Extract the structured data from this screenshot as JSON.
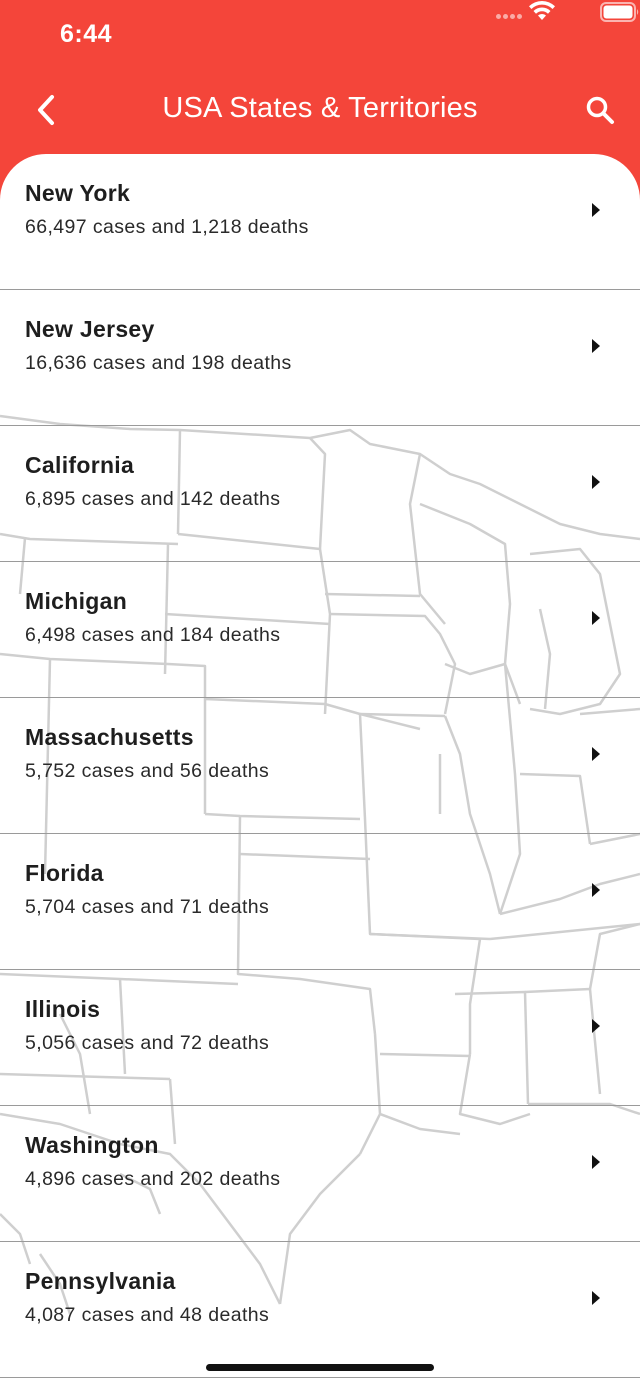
{
  "status_bar": {
    "time": "6:44"
  },
  "nav": {
    "title": "USA States & Territories",
    "back_icon": "chevron-left-icon",
    "search_icon": "search-icon"
  },
  "theme": {
    "header_color": "#f4453a",
    "list_background": "#ffffff"
  },
  "states": [
    {
      "name": "New York",
      "stats": "66,497 cases and 1,218 deaths"
    },
    {
      "name": "New Jersey",
      "stats": "16,636 cases and 198 deaths"
    },
    {
      "name": "California",
      "stats": "6,895 cases and 142 deaths"
    },
    {
      "name": "Michigan",
      "stats": "6,498 cases and 184 deaths"
    },
    {
      "name": "Massachusetts",
      "stats": "5,752 cases and 56 deaths"
    },
    {
      "name": "Florida",
      "stats": "5,704 cases and 71 deaths"
    },
    {
      "name": "Illinois",
      "stats": "5,056 cases and 72 deaths"
    },
    {
      "name": "Washington",
      "stats": "4,896 cases and 202 deaths"
    },
    {
      "name": "Pennsylvania",
      "stats": "4,087 cases and 48 deaths"
    }
  ]
}
